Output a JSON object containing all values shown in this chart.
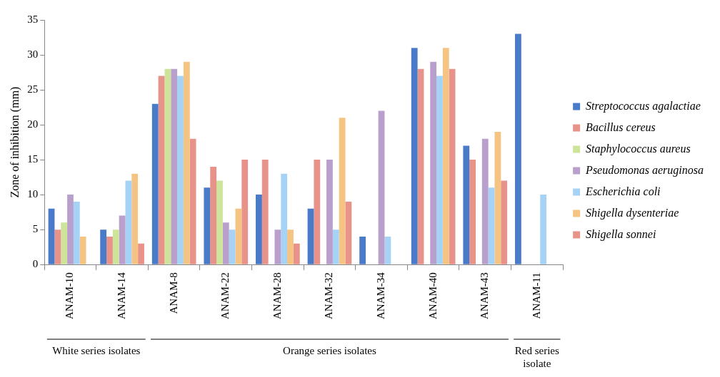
{
  "chart_data": {
    "type": "bar",
    "ylabel": "Zone of inhibition (mm)",
    "categories": [
      "ANAM-10",
      "ANAM-14",
      "ANAM-8",
      "ANAM-22",
      "ANAM-28",
      "ANAM-32",
      "ANAM-34",
      "ANAM-40",
      "ANAM-43",
      "ANAM-11"
    ],
    "series": [
      {
        "name": "Streptococcus agalactiae",
        "color": "#4a7bc8",
        "values": [
          8,
          5,
          23,
          11,
          10,
          8,
          4,
          31,
          17,
          33
        ]
      },
      {
        "name": "Bacillus cereus",
        "color": "#e8938a",
        "values": [
          5,
          4,
          27,
          14,
          15,
          15,
          null,
          28,
          15,
          null
        ]
      },
      {
        "name": "Staphylococcus aureus",
        "color": "#cde49a",
        "values": [
          6,
          5,
          28,
          12,
          null,
          null,
          null,
          null,
          null,
          null
        ]
      },
      {
        "name": "Pseudomonas aeruginosa",
        "color": "#b9a0cc",
        "values": [
          10,
          7,
          28,
          6,
          5,
          15,
          22,
          29,
          18,
          null
        ]
      },
      {
        "name": "Escherichia coli",
        "color": "#a6d3f5",
        "values": [
          9,
          12,
          27,
          5,
          13,
          5,
          4,
          27,
          11,
          10
        ]
      },
      {
        "name": "Shigella dysenteriae",
        "color": "#f5c482",
        "values": [
          4,
          13,
          29,
          8,
          5,
          21,
          null,
          31,
          19,
          null
        ]
      },
      {
        "name": "Shigella sonnei",
        "color": "#e8938a",
        "values": [
          null,
          3,
          18,
          15,
          3,
          9,
          null,
          28,
          12,
          null
        ]
      }
    ],
    "ylim": [
      0,
      35
    ],
    "yticks": [
      0,
      5,
      10,
      15,
      20,
      25,
      30,
      35
    ],
    "grid": false,
    "legend": "right",
    "annotations": [
      "White series isolates",
      "Orange series isolates",
      "Red series isolate"
    ]
  }
}
